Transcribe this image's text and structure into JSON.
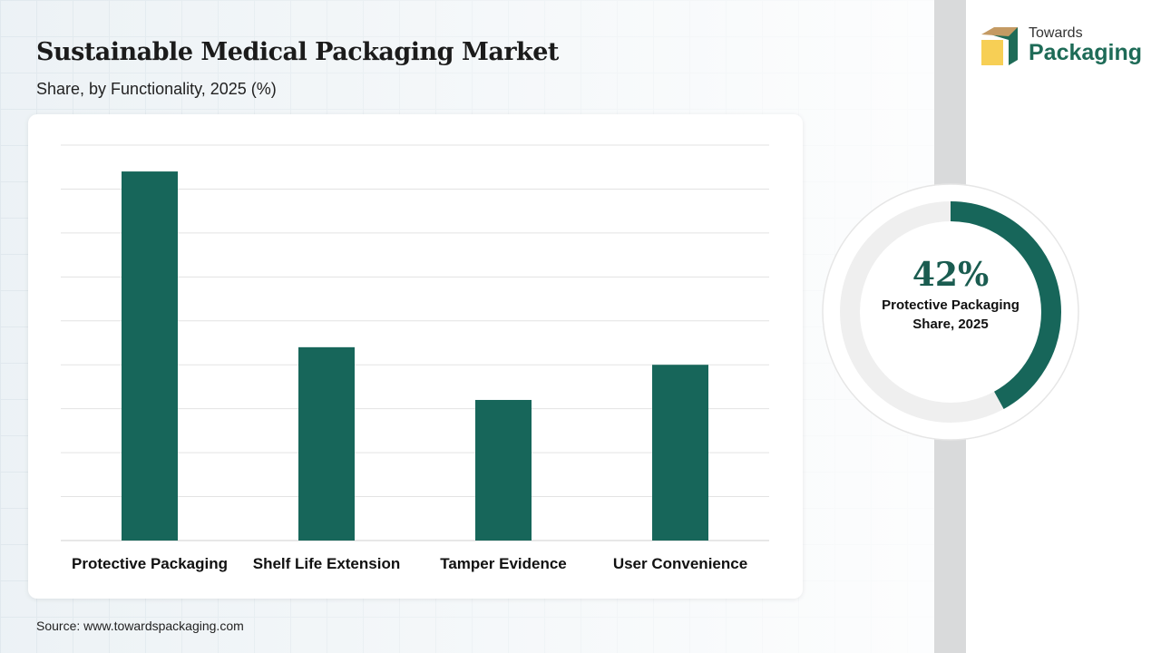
{
  "title": "Sustainable Medical Packaging Market",
  "subtitle": "Share, by Functionality, 2025 (%)",
  "source": "Source: www.towardspackaging.com",
  "logo": {
    "line1": "Towards",
    "line2": "Packaging"
  },
  "colors": {
    "bar": "#17665a",
    "ring_bg": "#efefef"
  },
  "donut": {
    "value": 42,
    "value_label": "42%",
    "label": "Protective Packaging Share, 2025"
  },
  "chart_data": {
    "type": "bar",
    "title": "Sustainable Medical Packaging Market",
    "subtitle": "Share, by Functionality, 2025 (%)",
    "categories": [
      "Protective Packaging",
      "Shelf Life Extension",
      "Tamper Evidence",
      "User Convenience"
    ],
    "values": [
      42,
      22,
      16,
      20
    ],
    "xlabel": "",
    "ylabel": "",
    "ylim": [
      0,
      45
    ],
    "ytick_step": 5,
    "grid": true,
    "legend": "none"
  }
}
